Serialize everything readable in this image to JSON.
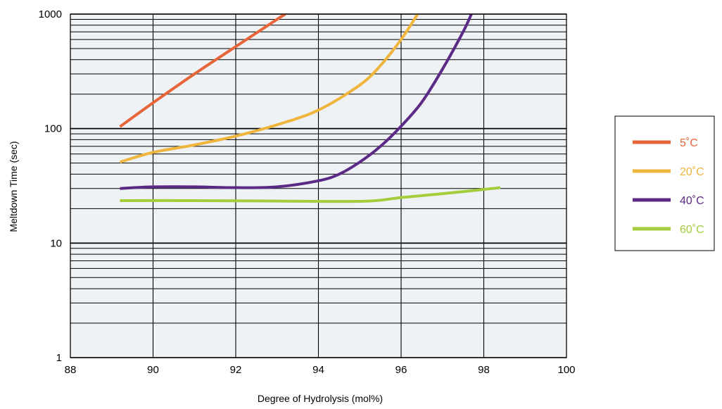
{
  "chart_data": {
    "type": "line",
    "title": "",
    "xlabel": "Degree of Hydrolysis (mol%)",
    "ylabel": "Meltdown Time (sec)",
    "xlim": [
      88,
      100
    ],
    "ylim": [
      1,
      1000
    ],
    "yscale": "log",
    "grid": true,
    "legend_position": "right",
    "x_ticks": [
      "88",
      "90",
      "92",
      "94",
      "96",
      "98",
      "100"
    ],
    "y_ticks": [
      "1",
      "10",
      "100",
      "1000"
    ],
    "colors": {
      "plot_background": "#eef2f5"
    },
    "series": [
      {
        "name": "5˚C",
        "color": "#e8653a",
        "x": [
          89.2,
          90.0,
          91.0,
          92.0,
          93.0,
          93.2
        ],
        "y": [
          104,
          168,
          300,
          520,
          900,
          1000
        ]
      },
      {
        "name": "20˚C",
        "color": "#f0b53c",
        "x": [
          89.2,
          90.0,
          91.0,
          92.0,
          93.0,
          94.0,
          95.0,
          95.5,
          96.0,
          96.4
        ],
        "y": [
          51,
          62,
          72,
          86,
          108,
          145,
          240,
          355,
          600,
          1000
        ]
      },
      {
        "name": "40˚C",
        "color": "#5b2a86",
        "x": [
          89.2,
          90.0,
          91.0,
          92.0,
          93.0,
          94.0,
          94.5,
          95.0,
          95.5,
          96.0,
          96.5,
          97.0,
          97.5,
          97.7
        ],
        "y": [
          30,
          31,
          31,
          30.5,
          31,
          35,
          40,
          51,
          70,
          105,
          170,
          330,
          700,
          1000
        ]
      },
      {
        "name": "60˚C",
        "color": "#a4cd3c",
        "x": [
          89.2,
          91.0,
          93.0,
          95.1,
          96.0,
          97.0,
          98.4
        ],
        "y": [
          23.5,
          23.5,
          23.3,
          23.2,
          25,
          27,
          30.5
        ]
      }
    ]
  }
}
